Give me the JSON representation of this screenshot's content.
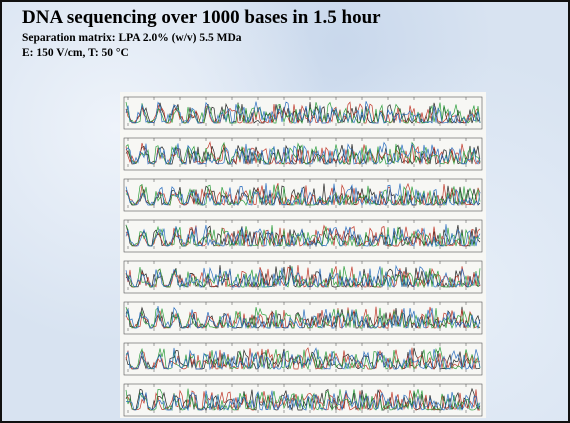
{
  "slide": {
    "title": "DNA sequencing over 1000 bases in 1.5 hour",
    "lines": [
      "Separation matrix: LPA 2.0% (w/v) 5.5 MDa",
      "E: 150 V/cm, T: 50 °C"
    ]
  }
}
